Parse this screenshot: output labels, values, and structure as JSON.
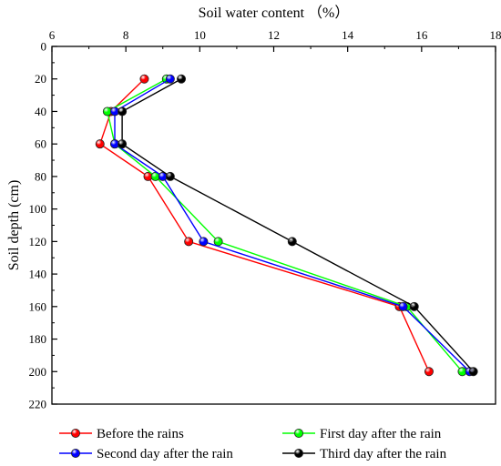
{
  "chart_data": {
    "type": "line",
    "orientation": "depth-profile",
    "xlabel": "Soil water content （%）",
    "ylabel": "Soil depth (cm)",
    "xlim": [
      6,
      18
    ],
    "ylim": [
      0,
      220
    ],
    "x_axis_position": "top",
    "y_axis_inverted": true,
    "x_ticks": [
      6,
      8,
      10,
      12,
      14,
      16,
      18
    ],
    "y_ticks": [
      0,
      20,
      40,
      60,
      80,
      100,
      120,
      140,
      160,
      180,
      200,
      220
    ],
    "grid": false,
    "legend_position": "bottom",
    "depth": [
      20,
      40,
      60,
      80,
      120,
      160,
      200
    ],
    "series": [
      {
        "name": "Before the rains",
        "color": "#ff0000",
        "values": [
          8.5,
          7.6,
          7.3,
          8.6,
          9.7,
          15.4,
          16.2
        ]
      },
      {
        "name": "First day after the rain",
        "color": "#00ff00",
        "values": [
          9.1,
          7.5,
          7.7,
          8.8,
          10.5,
          15.6,
          17.1
        ]
      },
      {
        "name": "Second day after the rain",
        "color": "#0000ff",
        "values": [
          9.2,
          7.7,
          7.7,
          9.0,
          10.1,
          15.5,
          17.3
        ]
      },
      {
        "name": "Third day after the rain",
        "color": "#000000",
        "values": [
          9.5,
          7.9,
          7.9,
          9.2,
          12.5,
          15.8,
          17.4
        ]
      }
    ]
  }
}
